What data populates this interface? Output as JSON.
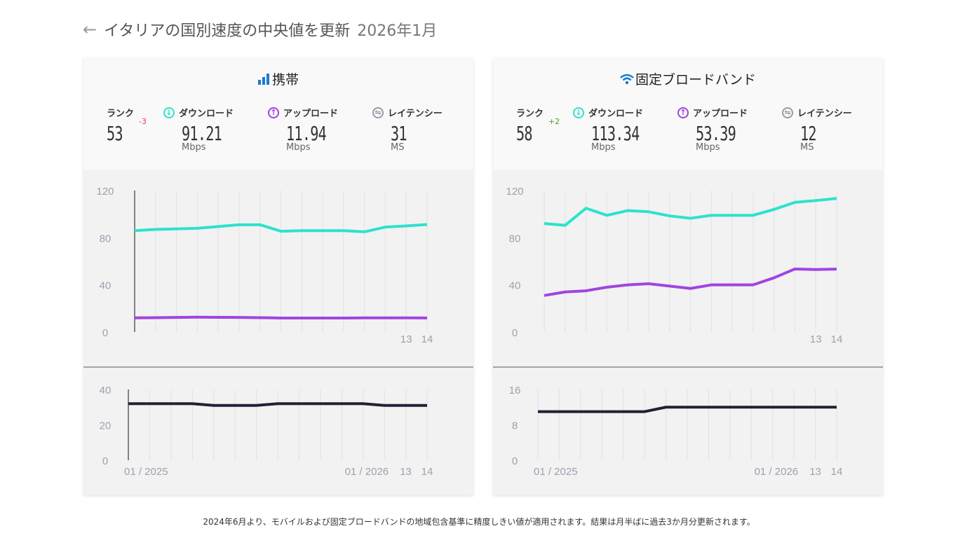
{
  "header": {
    "back_icon": "arrow-left-icon",
    "title": "イタリアの国別速度の中央値を更新",
    "date": "2026年1月"
  },
  "colors": {
    "download": "#2de2cc",
    "upload": "#a144e0",
    "latency": "#1f2235",
    "rank_down": "#e8335a",
    "rank_up": "#4a9a2a",
    "accent": "#1a7bd0"
  },
  "cards": [
    {
      "title": "携帯",
      "icon": "signal-bars-icon",
      "rank": {
        "label": "ランク",
        "value": "53",
        "delta": "-3"
      },
      "download": {
        "label": "ダウンロード",
        "value": "91.21",
        "unit": "Mbps"
      },
      "upload": {
        "label": "アップロード",
        "value": "11.94",
        "unit": "Mbps"
      },
      "latency": {
        "label": "レイテンシー",
        "value": "31",
        "unit": "MS"
      }
    },
    {
      "title": "固定ブロードバンド",
      "icon": "wifi-icon",
      "rank": {
        "label": "ランク",
        "value": "58",
        "delta": "+2"
      },
      "download": {
        "label": "ダウンロード",
        "value": "113.34",
        "unit": "Mbps"
      },
      "upload": {
        "label": "アップロード",
        "value": "53.39",
        "unit": "Mbps"
      },
      "latency": {
        "label": "レイテンシー",
        "value": "12",
        "unit": "MS"
      }
    }
  ],
  "chart_data": [
    {
      "type": "line",
      "ylim": [
        0,
        120
      ],
      "yticks": [
        0,
        40,
        80,
        120
      ],
      "xtick_labels": [
        "13",
        "14"
      ],
      "series": [
        {
          "key": "download",
          "values": [
            86,
            87,
            87.5,
            88,
            89.5,
            91,
            91,
            85.5,
            86,
            86,
            86,
            85,
            89,
            90,
            91.21
          ]
        },
        {
          "key": "upload",
          "values": [
            12,
            12.2,
            12.4,
            12.6,
            12.5,
            12.4,
            12.2,
            11.9,
            11.9,
            11.9,
            11.9,
            12,
            12,
            12,
            11.94
          ]
        }
      ]
    },
    {
      "type": "line",
      "ylim": [
        0,
        40
      ],
      "yticks": [
        0,
        20,
        40
      ],
      "xtick_labels": [
        "01 / 2025",
        "01 / 2026",
        "13",
        "14"
      ],
      "series": [
        {
          "key": "latency",
          "values": [
            32,
            32,
            32,
            32,
            31,
            31,
            31,
            32,
            32,
            32,
            32,
            32,
            31,
            31,
            31
          ]
        }
      ]
    },
    {
      "type": "line",
      "ylim": [
        0,
        120
      ],
      "yticks": [
        0,
        40,
        80,
        120
      ],
      "xtick_labels": [
        "13",
        "14"
      ],
      "series": [
        {
          "key": "download",
          "values": [
            92,
            90.5,
            105,
            99,
            103,
            102,
            98.5,
            96.5,
            99,
            99,
            99,
            104,
            110,
            111.5,
            113.34
          ]
        },
        {
          "key": "upload",
          "values": [
            31,
            34,
            35,
            38,
            40,
            41,
            39,
            37,
            40,
            40,
            40,
            46,
            53.5,
            53,
            53.39
          ]
        }
      ]
    },
    {
      "type": "line",
      "ylim": [
        0,
        16
      ],
      "yticks": [
        0,
        8,
        16
      ],
      "xtick_labels": [
        "01 / 2025",
        "01 / 2026",
        "13",
        "14"
      ],
      "series": [
        {
          "key": "latency",
          "values": [
            11,
            11,
            11,
            11,
            11,
            11,
            12,
            12,
            12,
            12,
            12,
            12,
            12,
            12,
            12
          ]
        }
      ]
    }
  ],
  "footer": "2024年6月より、モバイルおよび固定ブロードバンドの地域包含基準に精度しきい値が適用されます。結果は月半ばに過去3か月分更新されます。"
}
